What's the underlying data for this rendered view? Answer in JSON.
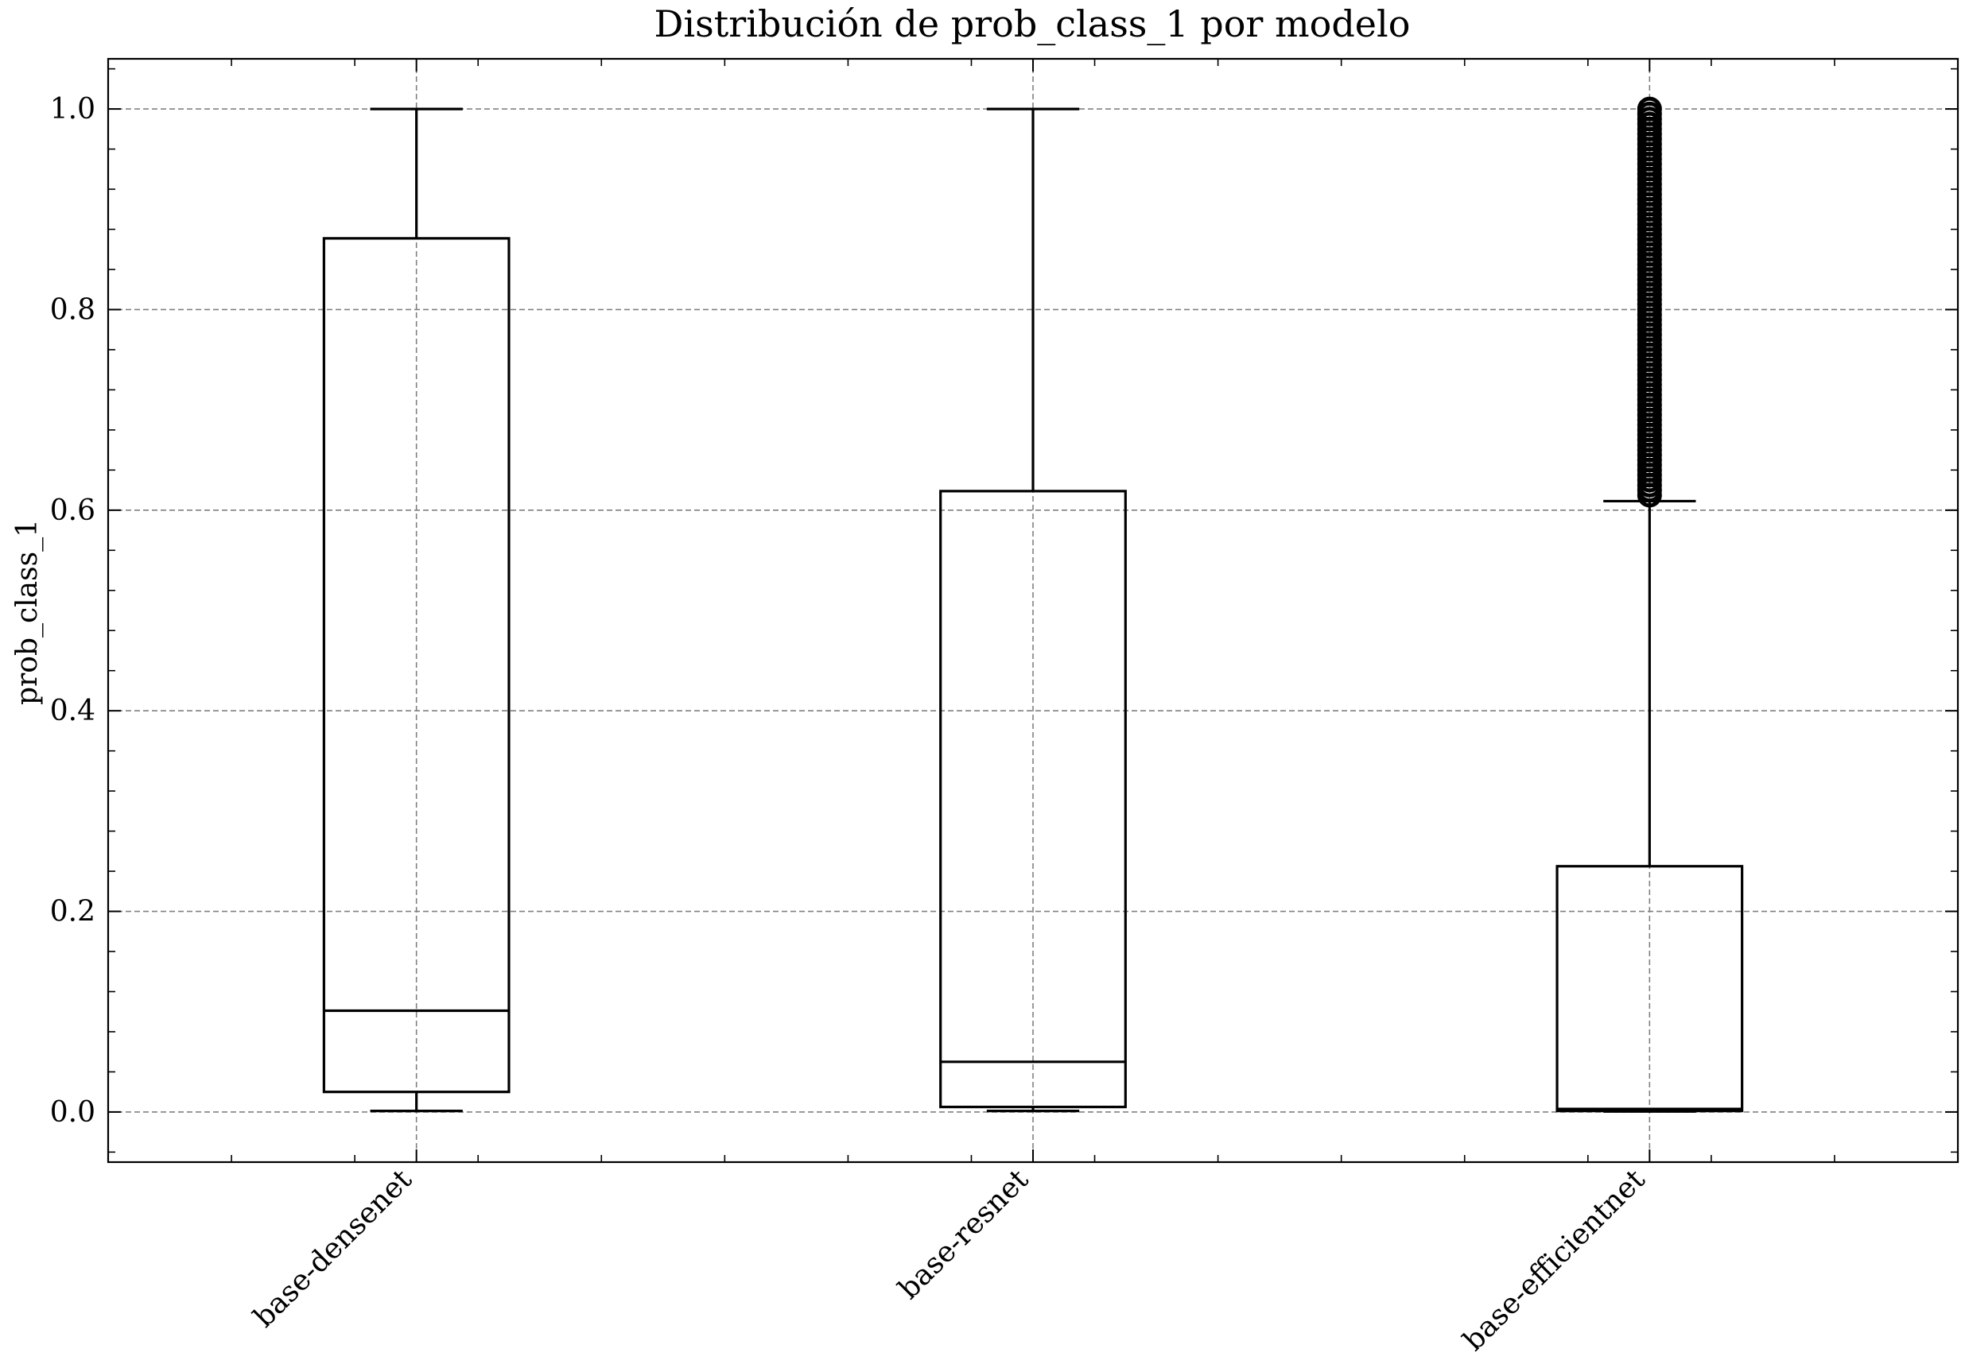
{
  "chart_data": {
    "type": "boxplot",
    "title": "Distribución de prob_class_1 por modelo",
    "xlabel": "",
    "ylabel": "prob_class_1",
    "ylim": [
      -0.05,
      1.05
    ],
    "yticks": [
      0.0,
      0.2,
      0.4,
      0.6,
      0.8,
      1.0
    ],
    "ytick_labels": [
      "0.0",
      "0.2",
      "0.4",
      "0.6",
      "0.8",
      "1.0"
    ],
    "grid": true,
    "categories": [
      "base-densenet",
      "base-resnet",
      "base-efficientnet"
    ],
    "boxes": [
      {
        "whisker_low": 0.001,
        "q1": 0.02,
        "median": 0.101,
        "q3": 0.871,
        "whisker_high": 1.0,
        "outliers": []
      },
      {
        "whisker_low": 0.001,
        "q1": 0.005,
        "median": 0.05,
        "q3": 0.619,
        "whisker_high": 1.0,
        "outliers": []
      },
      {
        "whisker_low": 0.0005,
        "q1": 0.001,
        "median": 0.003,
        "q3": 0.245,
        "whisker_high": 0.609,
        "outliers": [
          0.615,
          0.62,
          0.625,
          0.63,
          0.635,
          0.64,
          0.645,
          0.65,
          0.655,
          0.66,
          0.665,
          0.67,
          0.675,
          0.68,
          0.685,
          0.69,
          0.695,
          0.7,
          0.705,
          0.71,
          0.715,
          0.72,
          0.725,
          0.73,
          0.735,
          0.74,
          0.745,
          0.75,
          0.755,
          0.76,
          0.765,
          0.77,
          0.775,
          0.78,
          0.785,
          0.79,
          0.795,
          0.8,
          0.805,
          0.81,
          0.815,
          0.82,
          0.825,
          0.83,
          0.835,
          0.84,
          0.845,
          0.85,
          0.855,
          0.86,
          0.865,
          0.87,
          0.875,
          0.88,
          0.885,
          0.89,
          0.895,
          0.9,
          0.905,
          0.91,
          0.915,
          0.92,
          0.925,
          0.93,
          0.935,
          0.94,
          0.945,
          0.95,
          0.955,
          0.96,
          0.965,
          0.97,
          0.975,
          0.98,
          0.985,
          0.99,
          0.995,
          1.0
        ]
      }
    ],
    "colors": {
      "box": "#000000",
      "grid": "#808080",
      "background": "#ffffff"
    }
  }
}
